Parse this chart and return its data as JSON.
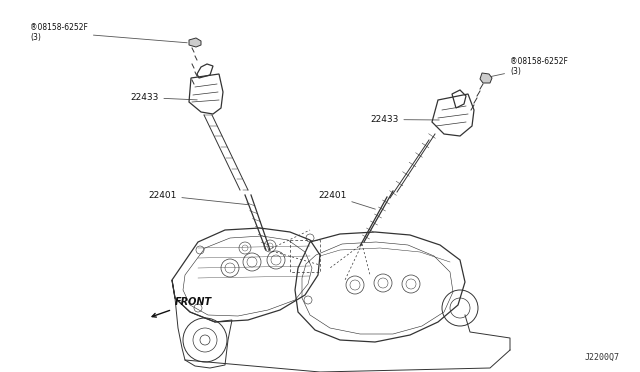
{
  "bg_color": "#ffffff",
  "line_color": "#333333",
  "label_color": "#111111",
  "diagram_id": "J2200Q7",
  "labels": {
    "screw_left": "®08158-6252F\n(3)",
    "screw_right": "®08158-6252F\n(3)",
    "coil_left": "22433",
    "spark_left": "22401",
    "coil_right": "22433",
    "spark_right": "22401",
    "front_label": "FRONT"
  },
  "figsize": [
    6.4,
    3.72
  ],
  "dpi": 100
}
